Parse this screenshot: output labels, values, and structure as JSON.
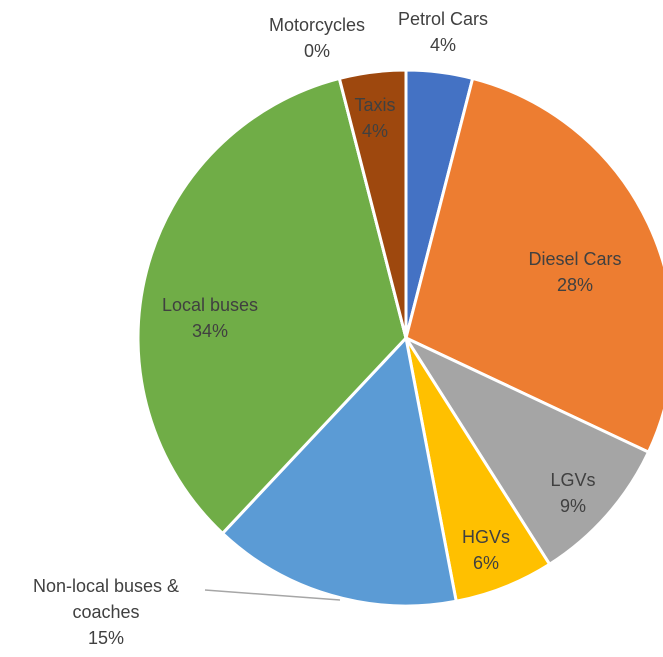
{
  "chart_data": {
    "type": "pie",
    "categories": [
      "Petrol Cars",
      "Diesel Cars",
      "LGVs",
      "HGVs",
      "Non-local buses & coaches",
      "Local buses",
      "Motorcycles",
      "Taxis"
    ],
    "values": [
      4,
      28,
      9,
      6,
      15,
      34,
      0,
      4
    ],
    "value_labels": [
      "4%",
      "28%",
      "9%",
      "6%",
      "15%",
      "34%",
      "0%",
      "4%"
    ],
    "colors": [
      "#4472c4",
      "#ed7d31",
      "#a5a5a5",
      "#ffc000",
      "#5b9bd5",
      "#70ad47",
      "#264478",
      "#9e480e"
    ]
  }
}
